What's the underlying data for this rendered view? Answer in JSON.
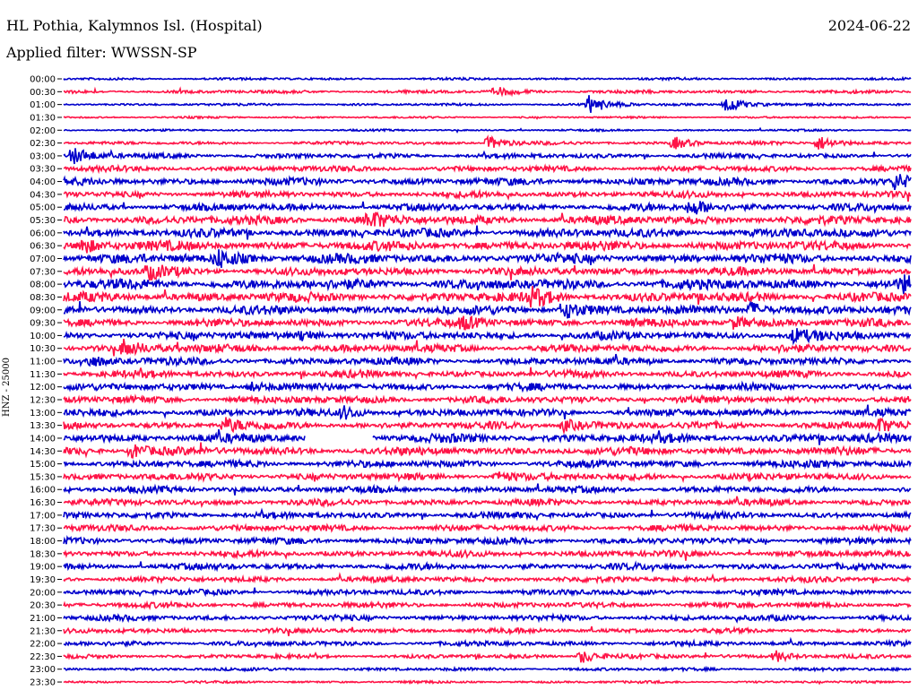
{
  "header": {
    "station": "HL Pothia, Kalymnos Isl. (Hospital)",
    "date": "2024-06-22",
    "filter": "Applied filter: WWSSN-SP"
  },
  "chart_data": {
    "type": "line",
    "ylabel": "HNZ - 25000",
    "row_labels": [
      "00:00",
      "00:30",
      "01:00",
      "01:30",
      "02:00",
      "02:30",
      "03:00",
      "03:30",
      "04:00",
      "04:30",
      "05:00",
      "05:30",
      "06:00",
      "06:30",
      "07:00",
      "07:30",
      "08:00",
      "08:30",
      "09:00",
      "09:30",
      "10:00",
      "10:30",
      "11:00",
      "11:30",
      "12:00",
      "12:30",
      "13:00",
      "13:30",
      "14:00",
      "14:30",
      "15:00",
      "15:30",
      "16:00",
      "16:30",
      "17:00",
      "17:30",
      "18:00",
      "18:30",
      "19:00",
      "19:30",
      "20:00",
      "20:30",
      "21:00",
      "21:30",
      "22:00",
      "22:30",
      "23:00",
      "23:30"
    ],
    "colors": [
      "#0000cc",
      "#ff1447"
    ],
    "noise_level": [
      0.15,
      0.2,
      0.15,
      0.12,
      0.12,
      0.2,
      0.3,
      0.35,
      0.45,
      0.4,
      0.45,
      0.55,
      0.55,
      0.6,
      0.6,
      0.5,
      0.65,
      0.6,
      0.55,
      0.5,
      0.5,
      0.5,
      0.45,
      0.45,
      0.45,
      0.45,
      0.45,
      0.45,
      0.55,
      0.5,
      0.45,
      0.45,
      0.4,
      0.4,
      0.4,
      0.4,
      0.4,
      0.4,
      0.4,
      0.35,
      0.35,
      0.35,
      0.35,
      0.3,
      0.3,
      0.25,
      0.2,
      0.15
    ],
    "events": [
      {
        "row": 1,
        "t": 0.51,
        "amp": 0.6
      },
      {
        "row": 2,
        "t": 0.62,
        "amp": 1.3
      },
      {
        "row": 2,
        "t": 0.78,
        "amp": 1.4
      },
      {
        "row": 5,
        "t": 0.5,
        "amp": 1.0
      },
      {
        "row": 5,
        "t": 0.72,
        "amp": 0.9
      },
      {
        "row": 5,
        "t": 0.89,
        "amp": 1.1
      },
      {
        "row": 6,
        "t": 0.01,
        "amp": 1.2
      },
      {
        "row": 8,
        "t": 0.98,
        "amp": 1.1
      },
      {
        "row": 10,
        "t": 0.74,
        "amp": 1.2
      },
      {
        "row": 11,
        "t": 0.36,
        "amp": 1.1
      },
      {
        "row": 13,
        "t": 0.02,
        "amp": 1.2
      },
      {
        "row": 14,
        "t": 0.18,
        "amp": 1.3
      },
      {
        "row": 15,
        "t": 0.1,
        "amp": 1.0
      },
      {
        "row": 16,
        "t": 0.99,
        "amp": 1.3
      },
      {
        "row": 17,
        "t": 0.55,
        "amp": 1.4
      },
      {
        "row": 18,
        "t": 0.59,
        "amp": 1.2
      },
      {
        "row": 18,
        "t": 0.81,
        "amp": 1.1
      },
      {
        "row": 19,
        "t": 0.47,
        "amp": 0.9
      },
      {
        "row": 19,
        "t": 0.79,
        "amp": 0.8
      },
      {
        "row": 20,
        "t": 0.28,
        "amp": 0.8
      },
      {
        "row": 20,
        "t": 0.86,
        "amp": 0.9
      },
      {
        "row": 21,
        "t": 0.07,
        "amp": 1.1
      },
      {
        "row": 22,
        "t": 0.03,
        "amp": 0.8
      },
      {
        "row": 24,
        "t": 0.22,
        "amp": 0.7
      },
      {
        "row": 26,
        "t": 0.33,
        "amp": 0.8
      },
      {
        "row": 27,
        "t": 0.19,
        "amp": 1.0
      },
      {
        "row": 27,
        "t": 0.59,
        "amp": 0.9
      },
      {
        "row": 27,
        "t": 0.96,
        "amp": 1.0
      },
      {
        "row": 29,
        "t": 0.08,
        "amp": 1.0
      },
      {
        "row": 31,
        "t": 0.51,
        "amp": 0.6
      },
      {
        "row": 45,
        "t": 0.61,
        "amp": 1.0
      },
      {
        "row": 45,
        "t": 0.84,
        "amp": 0.8
      }
    ],
    "gaps": [
      {
        "row": 28,
        "from": 0.285,
        "to": 0.365
      }
    ]
  }
}
